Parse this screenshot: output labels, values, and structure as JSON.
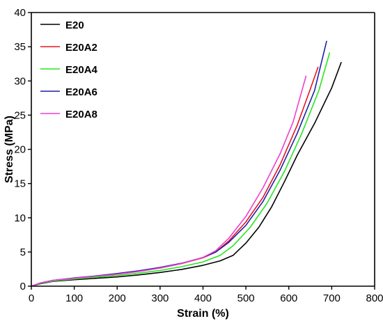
{
  "chart_data": {
    "type": "line",
    "xlabel": "Strain (%)",
    "ylabel": "Stress (MPa)",
    "xlim": [
      0,
      800
    ],
    "ylim": [
      0,
      40
    ],
    "xticks": [
      0,
      100,
      200,
      300,
      400,
      500,
      600,
      700,
      800
    ],
    "yticks": [
      0,
      5,
      10,
      15,
      20,
      25,
      30,
      35,
      40
    ],
    "grid": false,
    "legend_position": "top-left",
    "series": [
      {
        "name": "E20",
        "color": "#000000",
        "points": [
          [
            0,
            0
          ],
          [
            20,
            0.35
          ],
          [
            50,
            0.7
          ],
          [
            100,
            0.95
          ],
          [
            150,
            1.15
          ],
          [
            200,
            1.35
          ],
          [
            250,
            1.65
          ],
          [
            300,
            2.0
          ],
          [
            350,
            2.45
          ],
          [
            400,
            3.05
          ],
          [
            440,
            3.7
          ],
          [
            470,
            4.5
          ],
          [
            500,
            6.3
          ],
          [
            530,
            8.6
          ],
          [
            560,
            11.6
          ],
          [
            590,
            15.3
          ],
          [
            620,
            19.2
          ],
          [
            660,
            23.8
          ],
          [
            700,
            29.0
          ],
          [
            722,
            32.7
          ]
        ]
      },
      {
        "name": "E20A2",
        "color": "#e8141e",
        "points": [
          [
            0,
            0
          ],
          [
            20,
            0.45
          ],
          [
            50,
            0.85
          ],
          [
            100,
            1.15
          ],
          [
            150,
            1.45
          ],
          [
            200,
            1.75
          ],
          [
            250,
            2.15
          ],
          [
            300,
            2.65
          ],
          [
            350,
            3.3
          ],
          [
            400,
            4.15
          ],
          [
            430,
            5.0
          ],
          [
            460,
            6.6
          ],
          [
            500,
            9.4
          ],
          [
            540,
            13.0
          ],
          [
            580,
            17.8
          ],
          [
            620,
            23.6
          ],
          [
            650,
            28.8
          ],
          [
            668,
            32.0
          ]
        ]
      },
      {
        "name": "E20A4",
        "color": "#27e51f",
        "points": [
          [
            0,
            0
          ],
          [
            20,
            0.4
          ],
          [
            50,
            0.75
          ],
          [
            100,
            1.05
          ],
          [
            150,
            1.3
          ],
          [
            200,
            1.55
          ],
          [
            250,
            1.9
          ],
          [
            300,
            2.3
          ],
          [
            350,
            2.85
          ],
          [
            400,
            3.55
          ],
          [
            440,
            4.5
          ],
          [
            470,
            5.9
          ],
          [
            510,
            8.6
          ],
          [
            550,
            12.2
          ],
          [
            590,
            16.8
          ],
          [
            630,
            22.3
          ],
          [
            670,
            28.6
          ],
          [
            695,
            34.1
          ]
        ]
      },
      {
        "name": "E20A6",
        "color": "#1b1faa",
        "points": [
          [
            0,
            0
          ],
          [
            20,
            0.45
          ],
          [
            50,
            0.85
          ],
          [
            100,
            1.2
          ],
          [
            150,
            1.5
          ],
          [
            200,
            1.85
          ],
          [
            250,
            2.25
          ],
          [
            300,
            2.75
          ],
          [
            350,
            3.35
          ],
          [
            400,
            4.2
          ],
          [
            430,
            5.0
          ],
          [
            460,
            6.4
          ],
          [
            500,
            8.9
          ],
          [
            540,
            12.4
          ],
          [
            580,
            17.0
          ],
          [
            620,
            22.4
          ],
          [
            660,
            28.6
          ],
          [
            688,
            35.8
          ]
        ]
      },
      {
        "name": "E20A8",
        "color": "#ee3fd0",
        "points": [
          [
            0,
            0
          ],
          [
            20,
            0.45
          ],
          [
            50,
            0.85
          ],
          [
            100,
            1.15
          ],
          [
            150,
            1.45
          ],
          [
            200,
            1.75
          ],
          [
            250,
            2.15
          ],
          [
            300,
            2.65
          ],
          [
            350,
            3.3
          ],
          [
            400,
            4.2
          ],
          [
            430,
            5.2
          ],
          [
            460,
            7.0
          ],
          [
            500,
            10.2
          ],
          [
            540,
            14.4
          ],
          [
            580,
            19.4
          ],
          [
            610,
            24.0
          ],
          [
            640,
            30.7
          ]
        ]
      }
    ]
  }
}
